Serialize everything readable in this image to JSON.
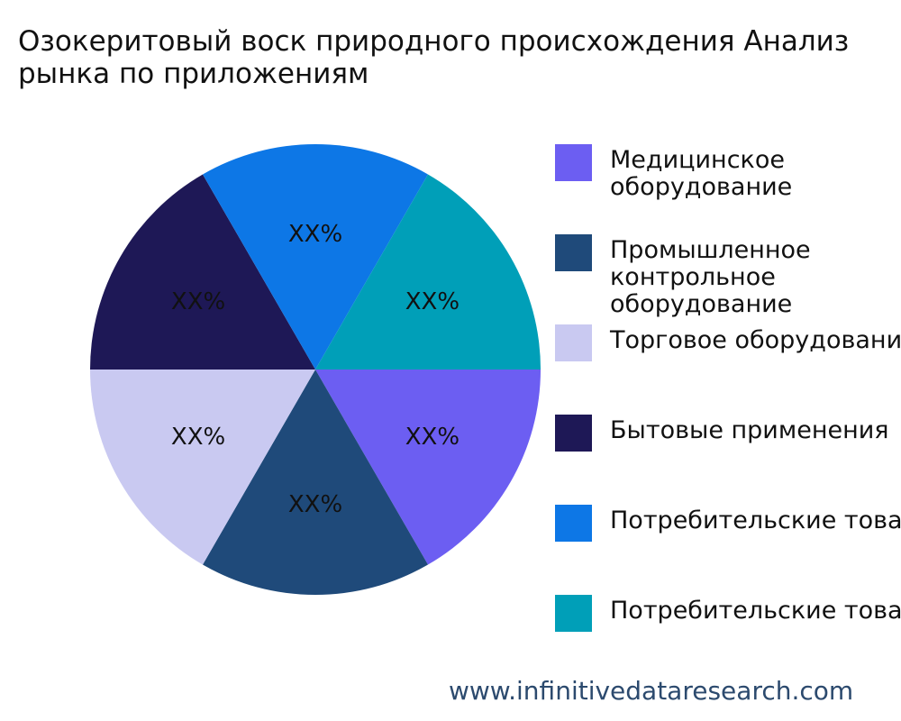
{
  "chart_data": {
    "type": "pie",
    "title_lines": [
      "Озокеритовый воск природного происхождения Анализ",
      "рынка по приложениям"
    ],
    "slice_labels": [
      "XX%",
      "XX%",
      "XX%",
      "XX%",
      "XX%",
      "XX%"
    ],
    "series": [
      {
        "name_lines": [
          "Медицинское",
          "оборудование"
        ],
        "color": "#6c5ef2",
        "value": 16.67,
        "label": "XX%"
      },
      {
        "name_lines": [
          "Промышленное",
          "контрольное",
          "оборудование"
        ],
        "color": "#1f4a7a",
        "value": 16.67,
        "label": "XX%"
      },
      {
        "name_lines": [
          "Торговое оборудование"
        ],
        "color": "#c9c9f1",
        "value": 16.67,
        "label": "XX%"
      },
      {
        "name_lines": [
          "Бытовые применения"
        ],
        "color": "#1e1856",
        "value": 16.67,
        "label": "XX%"
      },
      {
        "name_lines": [
          "Потребительские товары"
        ],
        "color": "#0d77e6",
        "value": 16.67,
        "label": "XX%"
      },
      {
        "name_lines": [
          "Потребительские товары"
        ],
        "color": "#009fb8",
        "value": 16.67,
        "label": "XX%"
      }
    ],
    "legend_position": "right"
  },
  "watermark": "www.infinitivedataresearch.com"
}
